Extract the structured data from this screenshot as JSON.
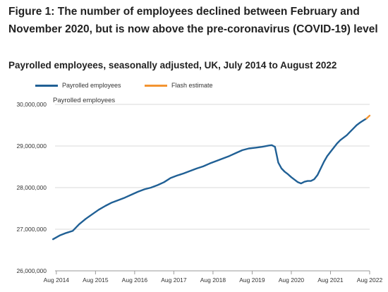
{
  "title": "Figure 1: The number of employees declined between February and November 2020, but is now above the pre-coronavirus (COVID-19) level",
  "subtitle": "Payrolled employees, seasonally adjusted, UK, July 2014 to August 2022",
  "legend": [
    {
      "label": "Payrolled employees",
      "color": "#206095"
    },
    {
      "label": "Flash estimate",
      "color": "#f39431"
    }
  ],
  "series_note": "Payrolled employees",
  "chart_data": {
    "type": "line",
    "title": "Figure 1: The number of employees declined between February and November 2020, but is now above the pre-coronavirus (COVID-19) level",
    "subtitle": "Payrolled employees, seasonally adjusted, UK, July 2014 to August 2022",
    "ylabel": "Payrolled employees",
    "xlabel": "",
    "ylim": [
      26000000,
      30000000
    ],
    "yticks": [
      26000000,
      27000000,
      28000000,
      29000000,
      30000000
    ],
    "ytick_labels": [
      "26,000,000",
      "27,000,000",
      "28,000,000",
      "29,000,000",
      "30,000,000"
    ],
    "xticks": [
      "Aug 2014",
      "Aug 2015",
      "Aug 2016",
      "Aug 2017",
      "Aug 2018",
      "Aug 2019",
      "Aug 2020",
      "Aug 2021",
      "Aug 2022"
    ],
    "grid": "horizontal",
    "legend_position": "top",
    "series": [
      {
        "name": "Payrolled employees",
        "color": "#206095",
        "points": [
          [
            "2014-07",
            26760000
          ],
          [
            "2014-09",
            26850000
          ],
          [
            "2014-11",
            26910000
          ],
          [
            "2015-01",
            26960000
          ],
          [
            "2015-03",
            27120000
          ],
          [
            "2015-05",
            27250000
          ],
          [
            "2015-07",
            27360000
          ],
          [
            "2015-09",
            27470000
          ],
          [
            "2015-11",
            27560000
          ],
          [
            "2016-01",
            27640000
          ],
          [
            "2016-03",
            27700000
          ],
          [
            "2016-05",
            27760000
          ],
          [
            "2016-07",
            27830000
          ],
          [
            "2016-09",
            27900000
          ],
          [
            "2016-11",
            27960000
          ],
          [
            "2017-01",
            28000000
          ],
          [
            "2017-03",
            28060000
          ],
          [
            "2017-05",
            28130000
          ],
          [
            "2017-07",
            28230000
          ],
          [
            "2017-09",
            28290000
          ],
          [
            "2017-11",
            28340000
          ],
          [
            "2018-01",
            28400000
          ],
          [
            "2018-03",
            28460000
          ],
          [
            "2018-05",
            28510000
          ],
          [
            "2018-07",
            28580000
          ],
          [
            "2018-09",
            28640000
          ],
          [
            "2018-11",
            28700000
          ],
          [
            "2019-01",
            28760000
          ],
          [
            "2019-03",
            28830000
          ],
          [
            "2019-05",
            28900000
          ],
          [
            "2019-07",
            28940000
          ],
          [
            "2019-09",
            28960000
          ],
          [
            "2019-11",
            28980000
          ],
          [
            "2020-01",
            29010000
          ],
          [
            "2020-02",
            29020000
          ],
          [
            "2020-03",
            28980000
          ],
          [
            "2020-04",
            28600000
          ],
          [
            "2020-05",
            28460000
          ],
          [
            "2020-06",
            28380000
          ],
          [
            "2020-07",
            28320000
          ],
          [
            "2020-08",
            28250000
          ],
          [
            "2020-09",
            28190000
          ],
          [
            "2020-10",
            28130000
          ],
          [
            "2020-11",
            28100000
          ],
          [
            "2020-12",
            28140000
          ],
          [
            "2021-01",
            28160000
          ],
          [
            "2021-02",
            28160000
          ],
          [
            "2021-03",
            28200000
          ],
          [
            "2021-04",
            28300000
          ],
          [
            "2021-05",
            28460000
          ],
          [
            "2021-06",
            28620000
          ],
          [
            "2021-07",
            28760000
          ],
          [
            "2021-08",
            28860000
          ],
          [
            "2021-09",
            28960000
          ],
          [
            "2021-10",
            29060000
          ],
          [
            "2021-11",
            29140000
          ],
          [
            "2021-12",
            29200000
          ],
          [
            "2022-01",
            29260000
          ],
          [
            "2022-02",
            29340000
          ],
          [
            "2022-03",
            29420000
          ],
          [
            "2022-04",
            29500000
          ],
          [
            "2022-05",
            29560000
          ],
          [
            "2022-06",
            29610000
          ],
          [
            "2022-07",
            29660000
          ]
        ]
      },
      {
        "name": "Flash estimate",
        "color": "#f39431",
        "points": [
          [
            "2022-07",
            29660000
          ],
          [
            "2022-08",
            29730000
          ]
        ]
      }
    ]
  }
}
